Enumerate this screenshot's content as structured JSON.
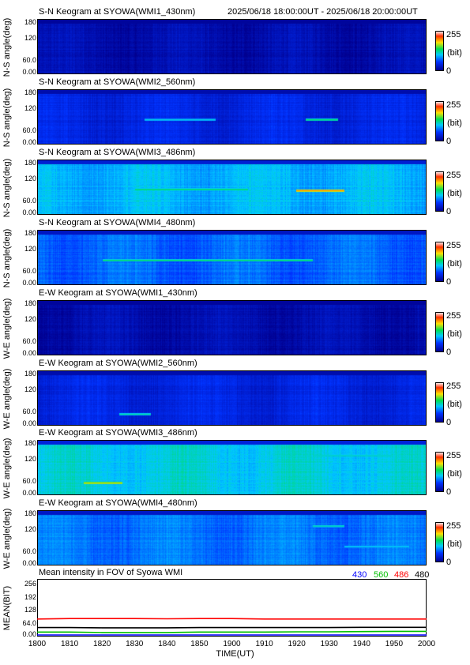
{
  "header": {
    "date_range": "2025/06/18 18:00:00UT - 2025/06/18 20:00:00UT"
  },
  "colorbar": {
    "max_label": "255",
    "unit_label": "(bit)",
    "min_label": "0",
    "stops": [
      "#000090",
      "#0033ff",
      "#00c8ff",
      "#00e050",
      "#ffe000",
      "#ff3000",
      "#ffe8e8"
    ]
  },
  "keograms": [
    {
      "title": "S-N Keogram at SYOWA(WMI1_430nm)",
      "ylabel": "N-S angle(deg)",
      "yticks": [
        "180",
        "120",
        "60.0",
        "0.00"
      ],
      "base_level": 0.06,
      "arcs": []
    },
    {
      "title": "S-N Keogram at SYOWA(WMI2_560nm)",
      "ylabel": "N-S angle(deg)",
      "yticks": [
        "180",
        "120",
        "60.0",
        "0.00"
      ],
      "base_level": 0.16,
      "arcs": [
        {
          "t0": 1833,
          "t1": 1855,
          "angle": 80,
          "level": 0.45
        },
        {
          "t0": 1923,
          "t1": 1933,
          "angle": 80,
          "level": 0.55
        }
      ]
    },
    {
      "title": "S-N Keogram at SYOWA(WMI3_486nm)",
      "ylabel": "N-S angle(deg)",
      "yticks": [
        "180",
        "120",
        "60.0",
        "0.00"
      ],
      "base_level": 0.38,
      "arcs": [
        {
          "t0": 1830,
          "t1": 1905,
          "angle": 82,
          "level": 0.56
        },
        {
          "t0": 1920,
          "t1": 1935,
          "angle": 78,
          "level": 0.8
        }
      ]
    },
    {
      "title": "S-N Keogram at SYOWA(WMI4_480nm)",
      "ylabel": "N-S angle(deg)",
      "yticks": [
        "180",
        "120",
        "60.0",
        "0.00"
      ],
      "base_level": 0.28,
      "arcs": [
        {
          "t0": 1820,
          "t1": 1925,
          "angle": 80,
          "level": 0.55
        }
      ]
    },
    {
      "title": "E-W Keogram at SYOWA(WMI1_430nm)",
      "ylabel": "W-E angle(deg)",
      "yticks": [
        "180",
        "120",
        "60.0",
        "0.00"
      ],
      "base_level": 0.06,
      "arcs": []
    },
    {
      "title": "E-W Keogram at SYOWA(WMI2_560nm)",
      "ylabel": "W-E angle(deg)",
      "yticks": [
        "180",
        "120",
        "60.0",
        "0.00"
      ],
      "base_level": 0.16,
      "arcs": [
        {
          "t0": 1825,
          "t1": 1835,
          "angle": 35,
          "level": 0.5
        }
      ]
    },
    {
      "title": "E-W Keogram at SYOWA(WMI3_486nm)",
      "ylabel": "W-E angle(deg)",
      "yticks": [
        "180",
        "120",
        "60.0",
        "0.00"
      ],
      "base_level": 0.42,
      "arcs": [
        {
          "t0": 1814,
          "t1": 1826,
          "angle": 37,
          "level": 0.72
        },
        {
          "t0": 1925,
          "t1": 1950,
          "angle": 130,
          "level": 0.5
        }
      ]
    },
    {
      "title": "E-W Keogram at SYOWA(WMI4_480nm)",
      "ylabel": "W-E angle(deg)",
      "yticks": [
        "180",
        "120",
        "60.0",
        "0.00"
      ],
      "base_level": 0.3,
      "arcs": [
        {
          "t0": 1925,
          "t1": 1935,
          "angle": 130,
          "level": 0.5
        },
        {
          "t0": 1935,
          "t1": 1955,
          "angle": 60,
          "level": 0.45
        }
      ]
    }
  ],
  "mean_panel": {
    "title": "Mean intensity in FOV of Syowa WMI",
    "ylabel": "MEAN(BIT)",
    "yticks": [
      "256",
      "192",
      "128",
      "64.0",
      "0.00"
    ]
  },
  "xaxis": {
    "label": "TIME(UT)",
    "ticks": [
      "1800",
      "1810",
      "1820",
      "1830",
      "1840",
      "1850",
      "1900",
      "1910",
      "1920",
      "1930",
      "1940",
      "1950",
      "2000"
    ]
  },
  "chart_data": {
    "type": "line",
    "title": "Mean intensity in FOV of Syowa WMI",
    "xlabel": "TIME(UT)",
    "ylabel": "MEAN(BIT)",
    "xlim": [
      "1800",
      "2000"
    ],
    "ylim": [
      0,
      256
    ],
    "x": [
      "1800",
      "1810",
      "1820",
      "1830",
      "1840",
      "1850",
      "1900",
      "1910",
      "1920",
      "1930",
      "1940",
      "1950",
      "2000"
    ],
    "series": [
      {
        "name": "430",
        "color": "#0000ff",
        "values": [
          7,
          7,
          7,
          7,
          7,
          7,
          7,
          7,
          7,
          7,
          7,
          7,
          7
        ]
      },
      {
        "name": "560",
        "color": "#00c000",
        "values": [
          20,
          20,
          18,
          18,
          18,
          20,
          20,
          20,
          21,
          21,
          22,
          23,
          23
        ]
      },
      {
        "name": "486",
        "color": "#ff0000",
        "values": [
          78,
          80,
          80,
          80,
          79,
          80,
          80,
          78,
          78,
          78,
          78,
          78,
          78
        ]
      },
      {
        "name": "480",
        "color": "#000000",
        "values": [
          40,
          40,
          39,
          39,
          39,
          40,
          40,
          40,
          40,
          40,
          41,
          41,
          41
        ]
      }
    ]
  }
}
